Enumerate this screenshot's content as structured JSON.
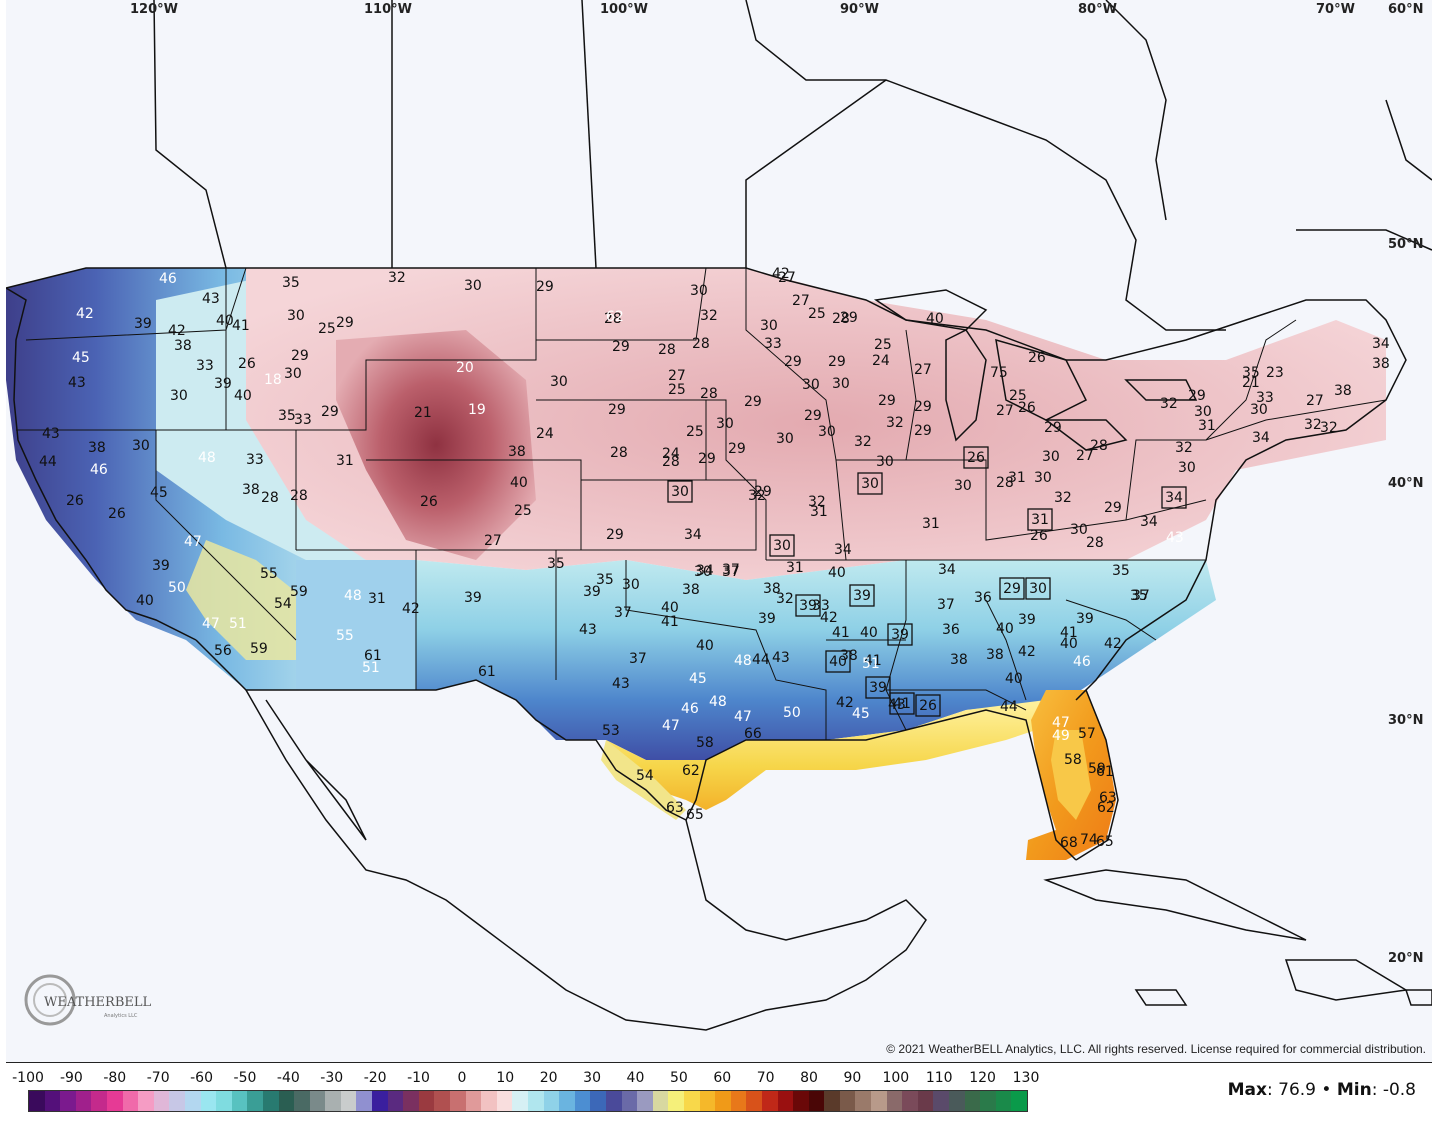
{
  "grid_labels": {
    "longitudes": [
      "120°W",
      "110°W",
      "100°W",
      "90°W",
      "80°W",
      "70°W",
      "60°N"
    ],
    "latitudes": [
      "50°N",
      "40°N",
      "30°N",
      "20°N"
    ]
  },
  "copyright": "© 2021 WeatherBELL Analytics, LLC. All rights reserved. License required for commercial distribution.",
  "logo": {
    "name": "WEATHERBELL",
    "tagline": "Analytics LLC",
    "icon": "weatherbell-logo-icon"
  },
  "legend": {
    "ticks": [
      "-100",
      "-90",
      "-80",
      "-70",
      "-60",
      "-50",
      "-40",
      "-30",
      "-20",
      "-10",
      "0",
      "10",
      "20",
      "30",
      "40",
      "50",
      "60",
      "70",
      "80",
      "90",
      "100",
      "110",
      "120",
      "130"
    ],
    "colors": [
      "#3a0a5c",
      "#54107a",
      "#7b1a8e",
      "#a0208c",
      "#c42a8c",
      "#e63a95",
      "#f06aaa",
      "#f59cc4",
      "#e0b7d8",
      "#c7c7e6",
      "#b3d7f0",
      "#9ae6f0",
      "#7fdce0",
      "#58c2c0",
      "#3a9e96",
      "#287a70",
      "#2a5e52",
      "#4a6a64",
      "#7a8a8a",
      "#a9b0b0",
      "#c9cccc",
      "#9090d0",
      "#3a1f9e",
      "#5a2a80",
      "#7a3060",
      "#9a3a40",
      "#b05050",
      "#c87070",
      "#e09a9a",
      "#f2c2c2",
      "#f9dede",
      "#d6f0f4",
      "#b0e6ee",
      "#8fd2e8",
      "#6ab4e0",
      "#4c8ed2",
      "#3c68b8",
      "#4a4a9a",
      "#6a6aa8",
      "#9a9ac0",
      "#d8d8a0",
      "#f5f07a",
      "#f8d84a",
      "#f5b82a",
      "#f09a18",
      "#e8781a",
      "#d8521a",
      "#c02818",
      "#9a1010",
      "#6a0808",
      "#4a0606",
      "#5a3a2a",
      "#7a5a4a",
      "#9a7a6a",
      "#b89a8a",
      "#8a6a6a",
      "#7a4a5a",
      "#6a3a4a",
      "#5a4a6a",
      "#4a5a5a",
      "#3a6a4a",
      "#2a7a4a",
      "#1a8a4a",
      "#0a9a4a"
    ]
  },
  "stats": {
    "max_label": "Max",
    "max_value": ": 76.9",
    "sep": " • ",
    "min_label": "Min",
    "min_value": ": -0.8"
  },
  "station_values": [
    {
      "v": "46",
      "w": true
    },
    {
      "v": "43",
      "w": false
    },
    {
      "v": "35",
      "w": false
    },
    {
      "v": "32",
      "w": false
    },
    {
      "v": "30",
      "w": false
    },
    {
      "v": "29",
      "w": false
    },
    {
      "v": "30",
      "w": false
    },
    {
      "v": "27",
      "w": false
    },
    {
      "v": "42",
      "w": true
    },
    {
      "v": "39",
      "w": false
    },
    {
      "v": "42",
      "w": false
    },
    {
      "v": "38",
      "w": false
    },
    {
      "v": "40",
      "w": false
    },
    {
      "v": "41",
      "w": false
    },
    {
      "v": "30",
      "w": false
    },
    {
      "v": "25",
      "w": false
    },
    {
      "v": "29",
      "w": false
    },
    {
      "v": "28",
      "w": false
    },
    {
      "v": "45",
      "w": true
    },
    {
      "v": "43",
      "w": false
    },
    {
      "v": "33",
      "w": false
    },
    {
      "v": "26",
      "w": false
    },
    {
      "v": "29",
      "w": false
    },
    {
      "v": "30",
      "w": false
    },
    {
      "v": "20",
      "w": true
    },
    {
      "v": "21",
      "w": false
    },
    {
      "v": "19",
      "w": true
    },
    {
      "v": "18",
      "w": true
    },
    {
      "v": "30",
      "w": false
    },
    {
      "v": "39",
      "w": false
    },
    {
      "v": "40",
      "w": false
    },
    {
      "v": "35",
      "w": false
    },
    {
      "v": "33",
      "w": false
    },
    {
      "v": "29",
      "w": false
    },
    {
      "v": "43",
      "w": false
    },
    {
      "v": "46",
      "w": true
    },
    {
      "v": "44",
      "w": false
    },
    {
      "v": "38",
      "w": false
    },
    {
      "v": "30",
      "w": false
    },
    {
      "v": "48",
      "w": true
    },
    {
      "v": "33",
      "w": false
    },
    {
      "v": "31",
      "w": false
    },
    {
      "v": "38",
      "w": false
    },
    {
      "v": "24",
      "w": false
    },
    {
      "v": "28",
      "w": false
    },
    {
      "v": "26",
      "w": false
    },
    {
      "v": "45",
      "w": false
    },
    {
      "v": "38",
      "w": false
    },
    {
      "v": "28",
      "w": false
    },
    {
      "v": "26",
      "w": false
    },
    {
      "v": "40",
      "w": false
    },
    {
      "v": "25",
      "w": false
    },
    {
      "v": "27",
      "w": false
    },
    {
      "v": "26",
      "w": false
    },
    {
      "v": "47",
      "w": true
    },
    {
      "v": "39",
      "w": false
    },
    {
      "v": "50",
      "w": true
    },
    {
      "v": "55",
      "w": false
    },
    {
      "v": "59",
      "w": false
    },
    {
      "v": "48",
      "w": true
    },
    {
      "v": "31",
      "w": false
    },
    {
      "v": "39",
      "w": false
    },
    {
      "v": "42",
      "w": false
    },
    {
      "v": "40",
      "w": false
    },
    {
      "v": "47",
      "w": true
    },
    {
      "v": "51",
      "w": true
    },
    {
      "v": "59",
      "w": false
    },
    {
      "v": "56",
      "w": false
    },
    {
      "v": "55",
      "w": true
    },
    {
      "v": "61",
      "w": false
    },
    {
      "v": "51",
      "w": true
    },
    {
      "v": "54",
      "w": false
    },
    {
      "v": "62",
      "w": true
    },
    {
      "v": "29",
      "w": false
    },
    {
      "v": "28",
      "w": false
    },
    {
      "v": "27",
      "w": false
    },
    {
      "v": "28",
      "w": false
    },
    {
      "v": "32",
      "w": false
    },
    {
      "v": "30",
      "w": false
    },
    {
      "v": "25",
      "w": false
    },
    {
      "v": "28",
      "w": false
    },
    {
      "v": "29",
      "w": false
    },
    {
      "v": "25",
      "w": false
    },
    {
      "v": "28",
      "w": false
    },
    {
      "v": "24",
      "w": false
    },
    {
      "v": "28",
      "w": false
    },
    {
      "v": "29",
      "w": false
    },
    {
      "v": "29",
      "w": false
    },
    {
      "v": "30",
      "w": false
    },
    {
      "v": "32",
      "w": false
    },
    {
      "v": "29",
      "w": false
    },
    {
      "v": "30",
      "w": false
    },
    {
      "v": "34",
      "w": false
    },
    {
      "v": "35",
      "w": false
    },
    {
      "v": "30",
      "w": false
    },
    {
      "v": "37",
      "w": false
    },
    {
      "v": "38",
      "w": false
    },
    {
      "v": "39",
      "w": false
    },
    {
      "v": "35",
      "w": false
    },
    {
      "v": "37",
      "w": false
    },
    {
      "v": "40",
      "w": false
    },
    {
      "v": "41",
      "w": false
    },
    {
      "v": "43",
      "w": false
    },
    {
      "v": "37",
      "w": false
    },
    {
      "v": "40",
      "w": false
    },
    {
      "v": "48",
      "w": true
    },
    {
      "v": "44",
      "w": false
    },
    {
      "v": "43",
      "w": false
    },
    {
      "v": "43",
      "w": false
    },
    {
      "v": "45",
      "w": true
    },
    {
      "v": "46",
      "w": true
    },
    {
      "v": "48",
      "w": true
    },
    {
      "v": "47",
      "w": true
    },
    {
      "v": "50",
      "w": true
    },
    {
      "v": "47",
      "w": true
    },
    {
      "v": "53",
      "w": false
    },
    {
      "v": "58",
      "w": false
    },
    {
      "v": "54",
      "w": false
    },
    {
      "v": "62",
      "w": false
    },
    {
      "v": "63",
      "w": false
    },
    {
      "v": "65",
      "w": false
    },
    {
      "v": "66",
      "w": false
    },
    {
      "v": "61",
      "w": false
    },
    {
      "v": "42",
      "w": false
    },
    {
      "v": "27",
      "w": false
    },
    {
      "v": "25",
      "w": false
    },
    {
      "v": "28",
      "w": false
    },
    {
      "v": "29",
      "w": false
    },
    {
      "v": "30",
      "w": false
    },
    {
      "v": "33",
      "w": false
    },
    {
      "v": "29",
      "w": false
    },
    {
      "v": "30",
      "w": false
    },
    {
      "v": "29",
      "w": false
    },
    {
      "v": "30",
      "w": false
    },
    {
      "v": "32",
      "w": false
    },
    {
      "v": "30",
      "w": false
    },
    {
      "v": "29",
      "w": false
    },
    {
      "v": "29",
      "w": false
    },
    {
      "v": "29",
      "w": false
    },
    {
      "v": "30",
      "w": false
    },
    {
      "v": "31",
      "w": false
    },
    {
      "v": "31",
      "w": false
    },
    {
      "v": "33",
      "w": false
    },
    {
      "v": "34",
      "w": false
    },
    {
      "v": "32",
      "w": false
    },
    {
      "v": "34",
      "w": false
    },
    {
      "v": "37",
      "w": false
    },
    {
      "v": "38",
      "w": false
    },
    {
      "v": "39",
      "w": false
    },
    {
      "v": "42",
      "w": false
    },
    {
      "v": "41",
      "w": false
    },
    {
      "v": "40",
      "w": false
    },
    {
      "v": "40",
      "w": false
    },
    {
      "v": "38",
      "w": false
    },
    {
      "v": "41",
      "w": false
    },
    {
      "v": "42",
      "w": false
    },
    {
      "v": "43",
      "w": false
    },
    {
      "v": "45",
      "w": true
    },
    {
      "v": "51",
      "w": true
    },
    {
      "v": "40",
      "w": false
    },
    {
      "v": "25",
      "w": false
    },
    {
      "v": "24",
      "w": false
    },
    {
      "v": "27",
      "w": false
    },
    {
      "v": "29",
      "w": false
    },
    {
      "v": "29",
      "w": false
    },
    {
      "v": "32",
      "w": false
    },
    {
      "v": "29",
      "w": false
    },
    {
      "v": "32",
      "w": false
    },
    {
      "v": "30",
      "w": false
    },
    {
      "v": "31",
      "w": false
    },
    {
      "v": "34",
      "w": false
    },
    {
      "v": "36",
      "w": false
    },
    {
      "v": "37",
      "w": false
    },
    {
      "v": "36",
      "w": false
    },
    {
      "v": "38",
      "w": false
    },
    {
      "v": "40",
      "w": false
    },
    {
      "v": "39",
      "w": false
    },
    {
      "v": "38",
      "w": false
    },
    {
      "v": "42",
      "w": false
    },
    {
      "v": "40",
      "w": false
    },
    {
      "v": "44",
      "w": false
    },
    {
      "v": "47",
      "w": true
    },
    {
      "v": "49",
      "w": true
    },
    {
      "v": "57",
      "w": false
    },
    {
      "v": "58",
      "w": false
    },
    {
      "v": "59",
      "w": false
    },
    {
      "v": "61",
      "w": false
    },
    {
      "v": "62",
      "w": false
    },
    {
      "v": "63",
      "w": false
    },
    {
      "v": "65",
      "w": false
    },
    {
      "v": "68",
      "w": false
    },
    {
      "v": "74",
      "w": false
    },
    {
      "v": "75",
      "w": false
    },
    {
      "v": "25",
      "w": false
    },
    {
      "v": "27",
      "w": false
    },
    {
      "v": "26",
      "w": false
    },
    {
      "v": "26",
      "w": false
    },
    {
      "v": "28",
      "w": false
    },
    {
      "v": "30",
      "w": false
    },
    {
      "v": "30",
      "w": false
    },
    {
      "v": "31",
      "w": false
    },
    {
      "v": "30",
      "w": false
    },
    {
      "v": "27",
      "w": false
    },
    {
      "v": "28",
      "w": false
    },
    {
      "v": "29",
      "w": false
    },
    {
      "v": "32",
      "w": false
    },
    {
      "v": "29",
      "w": false
    },
    {
      "v": "26",
      "w": false
    },
    {
      "v": "30",
      "w": false
    },
    {
      "v": "28",
      "w": false
    },
    {
      "v": "34",
      "w": false
    },
    {
      "v": "35",
      "w": false
    },
    {
      "v": "37",
      "w": false
    },
    {
      "v": "39",
      "w": false
    },
    {
      "v": "41",
      "w": false
    },
    {
      "v": "40",
      "w": false
    },
    {
      "v": "42",
      "w": false
    },
    {
      "v": "46",
      "w": true
    },
    {
      "v": "43",
      "w": true
    },
    {
      "v": "35",
      "w": false
    },
    {
      "v": "21",
      "w": false
    },
    {
      "v": "23",
      "w": false
    },
    {
      "v": "32",
      "w": false
    },
    {
      "v": "29",
      "w": false
    },
    {
      "v": "33",
      "w": false
    },
    {
      "v": "30",
      "w": false
    },
    {
      "v": "30",
      "w": false
    },
    {
      "v": "31",
      "w": false
    },
    {
      "v": "27",
      "w": false
    },
    {
      "v": "32",
      "w": false
    },
    {
      "v": "32",
      "w": false
    },
    {
      "v": "34",
      "w": false
    },
    {
      "v": "32",
      "w": false
    },
    {
      "v": "30",
      "w": false
    },
    {
      "v": "34",
      "w": false
    },
    {
      "v": "38",
      "w": false
    },
    {
      "v": "38",
      "w": false
    },
    {
      "v": "35",
      "w": false
    },
    {
      "v": "39",
      "w": false
    }
  ],
  "boxed_values": [
    "30",
    "30",
    "30",
    "26",
    "31",
    "39",
    "39",
    "39",
    "40",
    "39",
    "41",
    "26",
    "34",
    "29",
    "30"
  ]
}
